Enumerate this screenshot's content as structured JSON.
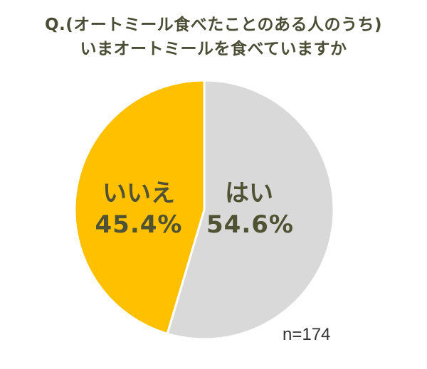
{
  "chart_data": {
    "type": "pie",
    "title": "Q.(オートミール食べたことのある人のうち)いまオートミールを食べていますか",
    "title_lines": [
      "Q.(オートミール食べたことのある人のうち)",
      "いまオートミールを食べていますか"
    ],
    "categories": [
      "はい",
      "いいえ"
    ],
    "values": [
      54.6,
      45.4
    ],
    "value_labels": [
      "54.6%",
      "45.4%"
    ],
    "colors": [
      "#d9d9d9",
      "#ffc000"
    ],
    "sample_size": "n=174",
    "legend": "none",
    "start_angle_deg": 0,
    "direction": "clockwise"
  },
  "labels": {
    "yes": {
      "name": "はい",
      "pct": "54.6%"
    },
    "no": {
      "name": "いいえ",
      "pct": "45.4%"
    }
  }
}
